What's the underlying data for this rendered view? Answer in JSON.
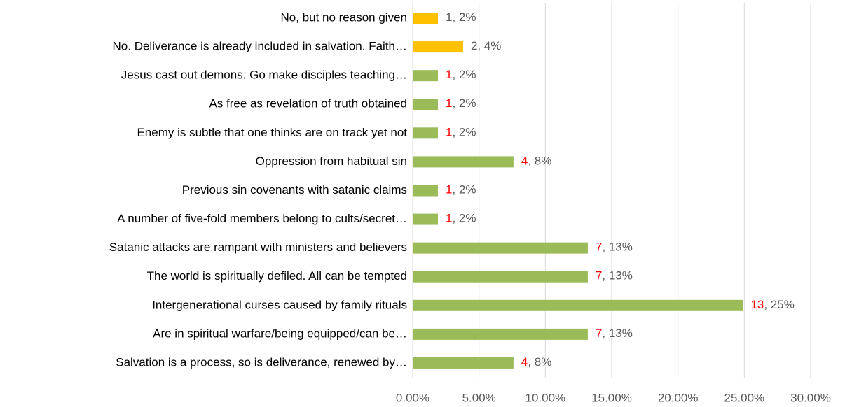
{
  "chart_data": {
    "type": "barh",
    "categories": [
      "No, but no reason given",
      "No. Deliverance is already included in salvation. Faith…",
      "Jesus cast out demons. Go make disciples teaching…",
      "As free as revelation of truth obtained",
      "Enemy is subtle that one thinks are on track yet not",
      "Oppression from habitual sin",
      "Previous sin covenants with satanic claims",
      "A number of five-fold members belong to cults/secret…",
      "Satanic attacks are rampant with ministers and believers",
      "The world is spiritually defiled. All can be tempted",
      "Intergenerational curses caused by family rituals",
      "Are in spiritual warfare/being equipped/can be…",
      "Salvation is a process, so is deliverance, renewed by…"
    ],
    "values": [
      1.9,
      3.8,
      1.9,
      1.9,
      1.9,
      7.6,
      1.9,
      1.9,
      13.2,
      13.2,
      24.9,
      13.2,
      7.6
    ],
    "value_labels": [
      "1, 2%",
      "2, 4%",
      "1, 2%",
      "1, 2%",
      "1, 2%",
      "4, 8%",
      "1, 2%",
      "1, 2%",
      "7, 13%",
      "7, 13%",
      "13, 25%",
      "7, 13%",
      "4, 8%"
    ],
    "colors": [
      "#ffc000",
      "#ffc000",
      "#9bbb59",
      "#9bbb59",
      "#9bbb59",
      "#9bbb59",
      "#9bbb59",
      "#9bbb59",
      "#9bbb59",
      "#9bbb59",
      "#9bbb59",
      "#9bbb59",
      "#9bbb59"
    ],
    "label_colors": [
      "#595959",
      "#595959",
      "#ff0000",
      "#ff0000",
      "#ff0000",
      "#ff0000",
      "#ff0000",
      "#ff0000",
      "#ff0000",
      "#ff0000",
      "#ff0000",
      "#ff0000",
      "#ff0000"
    ],
    "xlim": [
      0,
      30
    ],
    "xticks": [
      {
        "value": 0,
        "label": "0.00%"
      },
      {
        "value": 5,
        "label": "5.00%"
      },
      {
        "value": 10,
        "label": "10.00%"
      },
      {
        "value": 15,
        "label": "15.00%"
      },
      {
        "value": 20,
        "label": "20.00%"
      },
      {
        "value": 25,
        "label": "25.00%"
      },
      {
        "value": 30,
        "label": "30.00%"
      }
    ],
    "grid": true
  }
}
